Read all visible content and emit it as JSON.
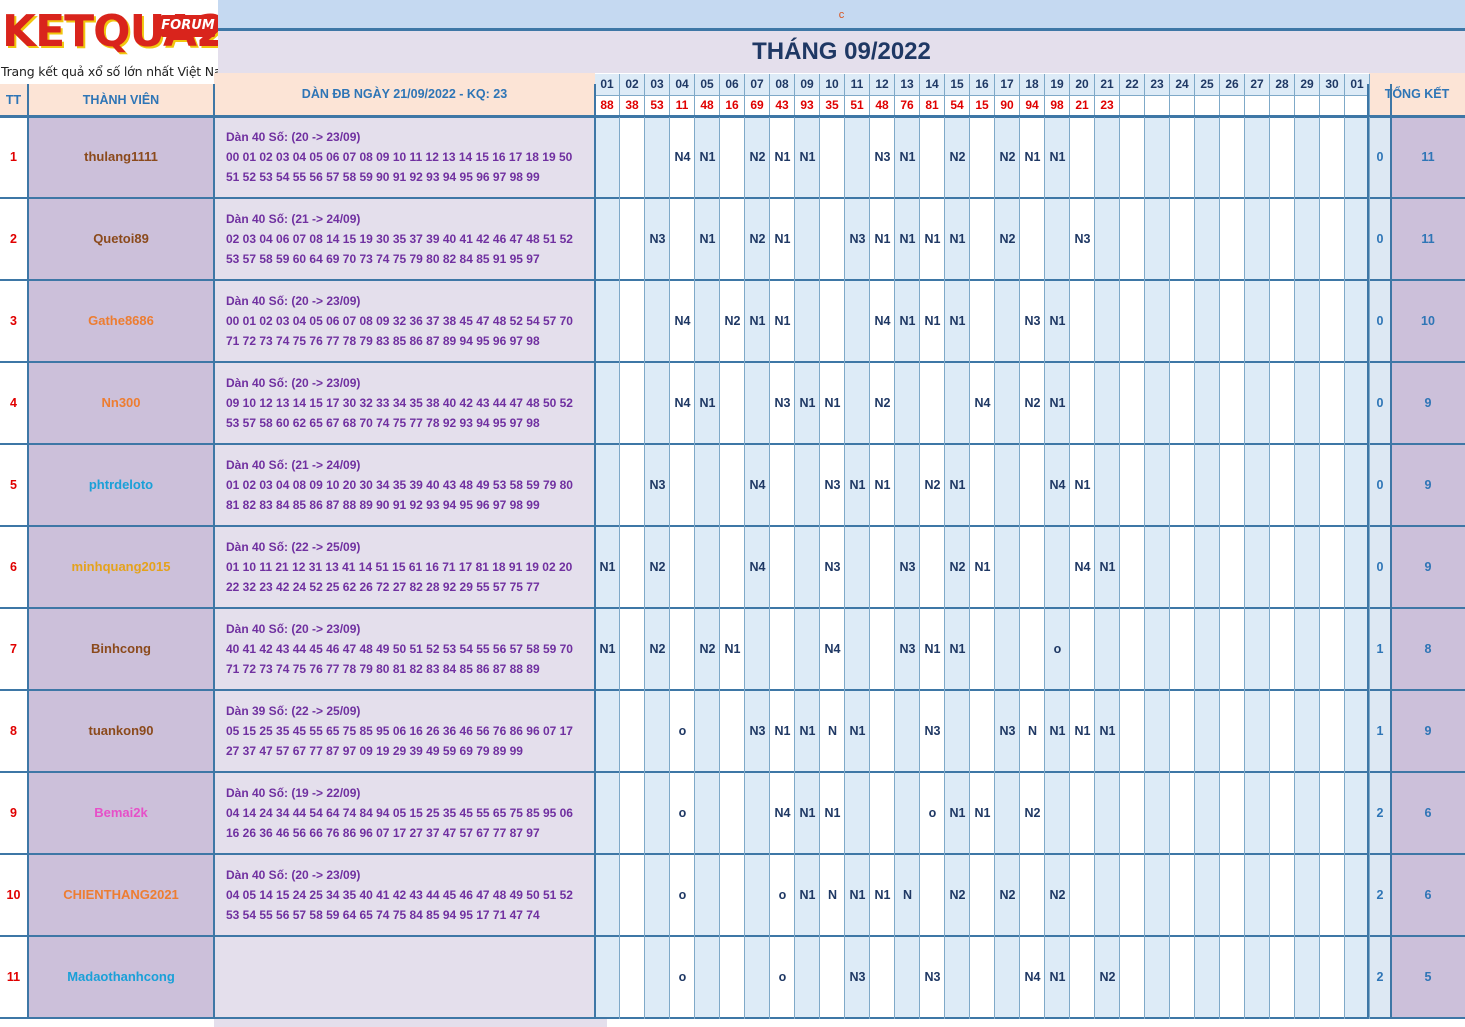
{
  "logo": {
    "word": "KETQUA2",
    "badge": "FORUM",
    "tagline": "Trang kết quả xổ số lớn nhất Việt Nam"
  },
  "top_strip": "c",
  "title": "THÁNG 09/2022",
  "headers": {
    "tt": "TT",
    "member": "THÀNH VIÊN",
    "dan": "DÀN ĐB NGÀY 21/09/2022 - KQ: 23",
    "total": "TỔNG KẾT"
  },
  "days": [
    "01",
    "02",
    "03",
    "04",
    "05",
    "06",
    "07",
    "08",
    "09",
    "10",
    "11",
    "12",
    "13",
    "14",
    "15",
    "16",
    "17",
    "18",
    "19",
    "20",
    "21",
    "22",
    "23",
    "24",
    "25",
    "26",
    "27",
    "28",
    "29",
    "30",
    "01"
  ],
  "results": [
    "88",
    "38",
    "53",
    "11",
    "48",
    "16",
    "69",
    "43",
    "93",
    "35",
    "51",
    "48",
    "76",
    "81",
    "54",
    "15",
    "90",
    "94",
    "98",
    "21",
    "23",
    "",
    "",
    "",
    "",
    "",
    "",
    "",
    "",
    "",
    ""
  ],
  "colors": {
    "header_bg": "#fce4d6",
    "header_text": "#2e75b6",
    "border": "#3e77a6",
    "result_red": "#e00000",
    "dan_purple": "#7030a0",
    "member_bg": "#ccc0da",
    "cell_blue": "#ddebf7",
    "total_blue": "#2e75b6"
  },
  "rows": [
    {
      "tt": "1",
      "name": "thulang1111",
      "color": "#8b4a1c",
      "dan": [
        "Dàn 40 Số: (20 -> 23/09)",
        "00 01 02 03 04 05 06 07 08 09 10 11 12 13 14 15 16 17 18 19 50",
        "51 52 53 54 55 56 57 58 59 90 91 92 93 94 95 96 97 98 99"
      ],
      "cells": [
        "",
        "",
        "",
        "N4",
        "N1",
        "",
        "N2",
        "N1",
        "N1",
        "",
        "",
        "N3",
        "N1",
        "",
        "N2",
        "",
        "N2",
        "N1",
        "N1",
        "",
        "",
        "",
        "",
        "",
        "",
        "",
        "",
        "",
        "",
        "",
        ""
      ],
      "t1": "0",
      "t2": "11"
    },
    {
      "tt": "2",
      "name": "Quetoi89",
      "color": "#8b4a1c",
      "dan": [
        "Dàn 40 Số: (21 -> 24/09)",
        "02 03 04 06 07 08 14 15 19 30 35 37 39 40 41 42 46 47 48 51 52",
        "53 57 58 59 60 64 69 70 73 74 75 79 80 82 84 85 91 95 97"
      ],
      "cells": [
        "",
        "",
        "N3",
        "",
        "N1",
        "",
        "N2",
        "N1",
        "",
        "",
        "N3",
        "N1",
        "N1",
        "N1",
        "N1",
        "",
        "N2",
        "",
        "",
        "N3",
        "",
        "",
        "",
        "",
        "",
        "",
        "",
        "",
        "",
        "",
        ""
      ],
      "t1": "0",
      "t2": "11"
    },
    {
      "tt": "3",
      "name": "Gathe8686",
      "color": "#ed7d31",
      "dan": [
        "Dàn 40 Số: (20 -> 23/09)",
        "00 01 02 03 04 05 06 07 08 09 32 36 37 38 45 47 48 52 54 57 70",
        "71 72 73 74 75 76 77 78 79 83 85 86 87 89 94 95 96 97 98"
      ],
      "cells": [
        "",
        "",
        "",
        "N4",
        "",
        "N2",
        "N1",
        "N1",
        "",
        "",
        "",
        "N4",
        "N1",
        "N1",
        "N1",
        "",
        "",
        "N3",
        "N1",
        "",
        "",
        "",
        "",
        "",
        "",
        "",
        "",
        "",
        "",
        "",
        ""
      ],
      "t1": "0",
      "t2": "10"
    },
    {
      "tt": "4",
      "name": "Nn300",
      "color": "#ed7d31",
      "dan": [
        "Dàn 40 Số: (20 -> 23/09)",
        "09 10 12 13 14 15 17 30 32 33 34 35 38 40 42 43 44 47 48 50 52",
        "53 57 58 60 62 65 67 68 70 74 75 77 78 92 93 94 95 97 98"
      ],
      "cells": [
        "",
        "",
        "",
        "N4",
        "N1",
        "",
        "",
        "N3",
        "N1",
        "N1",
        "",
        "N2",
        "",
        "",
        "",
        "N4",
        "",
        "N2",
        "N1",
        "",
        "",
        "",
        "",
        "",
        "",
        "",
        "",
        "",
        "",
        "",
        ""
      ],
      "t1": "0",
      "t2": "9"
    },
    {
      "tt": "5",
      "name": "phtrdeloto",
      "color": "#1aa0d8",
      "dan": [
        "Dàn 40 Số: (21 -> 24/09)",
        "01 02 03 04 08 09 10 20 30 34 35 39 40 43 48 49 53 58 59 79 80",
        "81 82 83 84 85 86 87 88 89 90 91 92 93 94 95 96 97 98 99"
      ],
      "cells": [
        "",
        "",
        "N3",
        "",
        "",
        "",
        "N4",
        "",
        "",
        "N3",
        "N1",
        "N1",
        "",
        "N2",
        "N1",
        "",
        "",
        "",
        "N4",
        "N1",
        "",
        "",
        "",
        "",
        "",
        "",
        "",
        "",
        "",
        "",
        ""
      ],
      "t1": "0",
      "t2": "9"
    },
    {
      "tt": "6",
      "name": "minhquang2015",
      "color": "#e4a21c",
      "dan": [
        "Dàn 40 Số: (22 -> 25/09)",
        "01 10 11 21 12 31 13 41 14 51 15 61 16 71 17 81 18 91 19 02 20",
        "22 32 23 42 24 52 25 62 26 72 27 82 28 92 29 55 57 75 77"
      ],
      "cells": [
        "N1",
        "",
        "N2",
        "",
        "",
        "",
        "N4",
        "",
        "",
        "N3",
        "",
        "",
        "N3",
        "",
        "N2",
        "N1",
        "",
        "",
        "",
        "N4",
        "N1",
        "",
        "",
        "",
        "",
        "",
        "",
        "",
        "",
        "",
        ""
      ],
      "t1": "0",
      "t2": "9"
    },
    {
      "tt": "7",
      "name": "Binhcong",
      "color": "#8b4a1c",
      "dan": [
        "Dàn 40 Số: (20 -> 23/09)",
        "40 41 42 43 44 45 46 47 48 49 50 51 52 53 54 55 56 57 58 59 70",
        "71 72 73 74 75 76 77 78 79 80 81 82 83 84 85 86 87 88 89"
      ],
      "cells": [
        "N1",
        "",
        "N2",
        "",
        "N2",
        "N1",
        "",
        "",
        "",
        "N4",
        "",
        "",
        "N3",
        "N1",
        "N1",
        "",
        "",
        "",
        "o",
        "",
        "",
        "",
        "",
        "",
        "",
        "",
        "",
        "",
        "",
        "",
        ""
      ],
      "t1": "1",
      "t2": "8"
    },
    {
      "tt": "8",
      "name": "tuankon90",
      "color": "#8b4a1c",
      "dan": [
        "Dàn 39 Số: (22 -> 25/09)",
        "05 15 25 35 45 55 65 75 85 95 06 16 26 36 46 56 76 86 96 07 17",
        "27 37 47 57 67 77 87 97 09 19 29 39 49 59 69 79 89 99"
      ],
      "cells": [
        "",
        "",
        "",
        "o",
        "",
        "",
        "N3",
        "N1",
        "N1",
        "N",
        "N1",
        "",
        "",
        "N3",
        "",
        "",
        "N3",
        "N",
        "N1",
        "N1",
        "N1",
        "",
        "",
        "",
        "",
        "",
        "",
        "",
        "",
        "",
        ""
      ],
      "t1": "1",
      "t2": "9"
    },
    {
      "tt": "9",
      "name": "Bemai2k",
      "color": "#e64fc8",
      "dan": [
        "Dàn 40 Số: (19 -> 22/09)",
        "04 14 24 34 44 54 64 74 84 94 05 15 25 35 45 55 65 75 85 95 06",
        "16 26 36 46 56 66 76 86 96 07 17 27 37 47 57 67 77 87 97"
      ],
      "cells": [
        "",
        "",
        "",
        "o",
        "",
        "",
        "",
        "N4",
        "N1",
        "N1",
        "",
        "",
        "",
        "o",
        "N1",
        "N1",
        "",
        "N2",
        "",
        "",
        "",
        "",
        "",
        "",
        "",
        "",
        "",
        "",
        "",
        "",
        ""
      ],
      "t1": "2",
      "t2": "6"
    },
    {
      "tt": "10",
      "name": "CHIENTHANG2021",
      "color": "#ed7d31",
      "dan": [
        "Dàn 40 Số: (20 -> 23/09)",
        "04 05 14 15 24 25 34 35 40 41 42 43 44 45 46 47 48 49 50 51 52",
        "53 54 55 56 57 58 59 64 65 74 75 84 85 94 95 17 71 47 74"
      ],
      "cells": [
        "",
        "",
        "",
        "o",
        "",
        "",
        "",
        "o",
        "N1",
        "N",
        "N1",
        "N1",
        "N",
        "",
        "N2",
        "",
        "N2",
        "",
        "N2",
        "",
        "",
        "",
        "",
        "",
        "",
        "",
        "",
        "",
        "",
        "",
        ""
      ],
      "t1": "2",
      "t2": "6"
    },
    {
      "tt": "11",
      "name": "Madaothanhcong",
      "color": "#1aa0d8",
      "dan": [
        "",
        "",
        ""
      ],
      "cells": [
        "",
        "",
        "",
        "o",
        "",
        "",
        "",
        "o",
        "",
        "",
        "N3",
        "",
        "",
        "N3",
        "",
        "",
        "",
        "N4",
        "N1",
        "",
        "N2",
        "",
        "",
        "",
        "",
        "",
        "",
        "",
        "",
        "",
        ""
      ],
      "t1": "2",
      "t2": "5"
    }
  ]
}
